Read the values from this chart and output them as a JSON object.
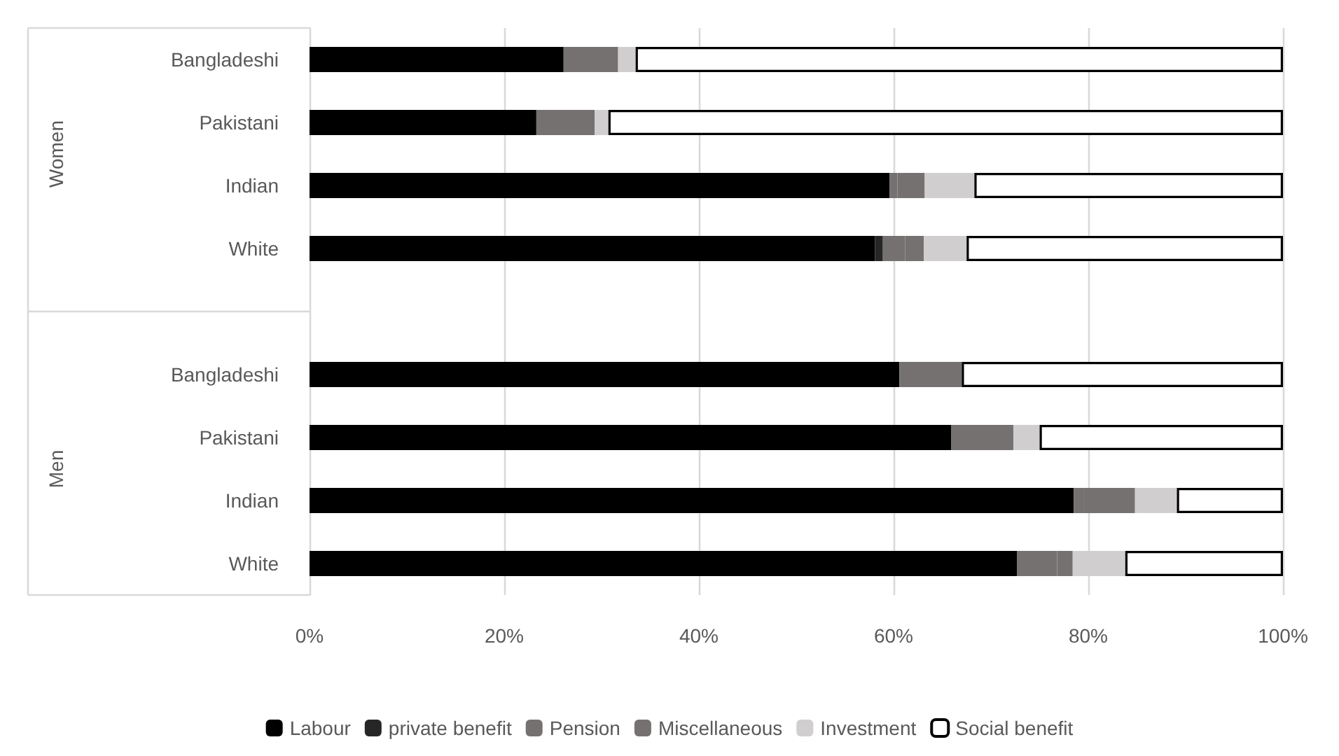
{
  "chart_data": {
    "type": "bar",
    "orientation": "horizontal",
    "stacked": true,
    "categories": [
      "Bangladeshi",
      "Pakistani",
      "Indian",
      "White",
      null,
      "Bangladeshi",
      "Pakistani",
      "Indian",
      "White"
    ],
    "series": [
      {
        "name": "Labour",
        "color": "#000000",
        "values": [
          26.1,
          23.3,
          59.6,
          58.1,
          null,
          60.6,
          65.9,
          78.5,
          72.7
        ]
      },
      {
        "name": "private benefit",
        "color": "#262626",
        "values": [
          0,
          0,
          0,
          0.8,
          null,
          0,
          0,
          0,
          0
        ]
      },
      {
        "name": "Pension",
        "color": "#767171",
        "values": [
          5.6,
          6.0,
          0.8,
          2.3,
          null,
          6.4,
          6.4,
          1.0,
          4.1
        ]
      },
      {
        "name": "Miscellaneous",
        "color": "#767171",
        "values": [
          0,
          0,
          2.8,
          1.9,
          null,
          0,
          0,
          5.3,
          1.6
        ]
      },
      {
        "name": "Investment",
        "color": "#d0cece",
        "values": [
          1.8,
          1.4,
          5.1,
          4.4,
          null,
          0,
          2.7,
          4.3,
          5.4
        ]
      },
      {
        "name": "Social benefit",
        "color": "#ffffff",
        "values": [
          66.5,
          69.3,
          31.7,
          32.5,
          null,
          33.0,
          25.0,
          10.9,
          16.2
        ]
      }
    ],
    "xlim": [
      0,
      100
    ],
    "xticks": [
      {
        "value": 0,
        "label": "0%"
      },
      {
        "value": 20,
        "label": "20%"
      },
      {
        "value": 40,
        "label": "40%"
      },
      {
        "value": 60,
        "label": "60%"
      },
      {
        "value": 80,
        "label": "80%"
      },
      {
        "value": 100,
        "label": "100%"
      }
    ],
    "annotations": [
      "Women",
      "Men"
    ],
    "grid": "x",
    "legend": "bottom"
  }
}
